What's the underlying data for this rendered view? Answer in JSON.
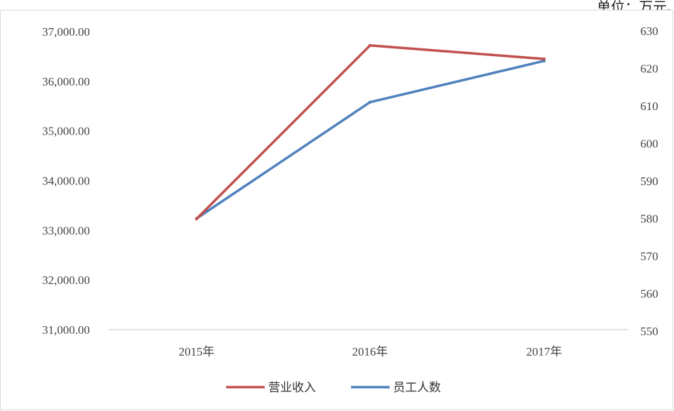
{
  "unit_note": "单位：万元、人",
  "chart_data": {
    "type": "line",
    "categories": [
      "2015年",
      "2016年",
      "2017年"
    ],
    "series": [
      {
        "name": "营业收入",
        "axis": "left",
        "color": "#c0504d",
        "values": [
          33230,
          36720,
          36450
        ]
      },
      {
        "name": "员工人数",
        "axis": "right",
        "color": "#4f81bd",
        "values": [
          580,
          611,
          622
        ]
      }
    ],
    "y_left": {
      "min": 31000,
      "max": 37000,
      "ticks": [
        "31,000.00",
        "32,000.00",
        "33,000.00",
        "34,000.00",
        "35,000.00",
        "36,000.00",
        "37,000.00"
      ]
    },
    "y_right": {
      "min": 550,
      "max": 630,
      "ticks": [
        "550",
        "560",
        "570",
        "580",
        "590",
        "600",
        "610",
        "620",
        "630"
      ]
    },
    "legend_position": "bottom",
    "grid": false
  }
}
